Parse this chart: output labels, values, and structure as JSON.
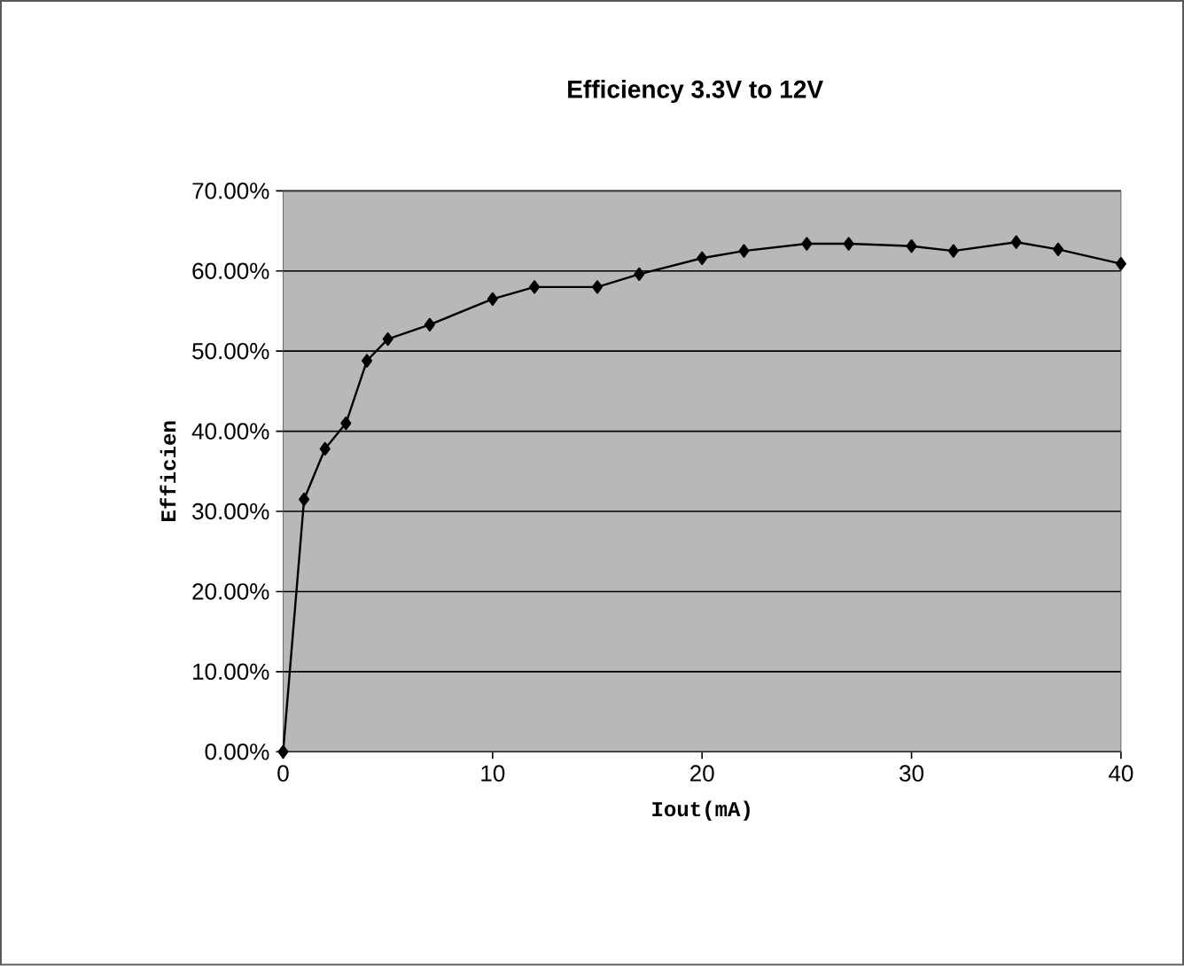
{
  "chart_data": {
    "type": "line",
    "title": "Efficiency 3.3V to 12V",
    "xlabel": "Iout(mA)",
    "ylabel": "Efficien",
    "x": [
      0,
      1,
      2,
      3,
      4,
      5,
      7,
      10,
      12,
      15,
      17,
      20,
      22,
      25,
      27,
      30,
      32,
      35,
      37,
      40
    ],
    "series": [
      {
        "color": "#000000",
        "values": [
          0,
          31.5,
          37.8,
          41,
          48.8,
          51.5,
          53.3,
          56.5,
          58,
          58,
          59.6,
          61.6,
          62.5,
          63.4,
          63.4,
          63.1,
          62.5,
          63.6,
          62.7,
          60.9
        ]
      }
    ],
    "xlim": [
      0,
      40
    ],
    "xticks": [
      0,
      10,
      20,
      30,
      40
    ],
    "ylim": [
      0,
      70
    ],
    "yticks": [
      {
        "value": 0,
        "label": "0.00%"
      },
      {
        "value": 10,
        "label": "10.00%"
      },
      {
        "value": 20,
        "label": "20.00%"
      },
      {
        "value": 30,
        "label": "30.00%"
      },
      {
        "value": 40,
        "label": "40.00%"
      },
      {
        "value": 50,
        "label": "50.00%"
      },
      {
        "value": 60,
        "label": "60.00%"
      },
      {
        "value": 70,
        "label": "70.00%"
      }
    ],
    "grid": "y",
    "marker": "diamond",
    "line_style": "solid"
  }
}
